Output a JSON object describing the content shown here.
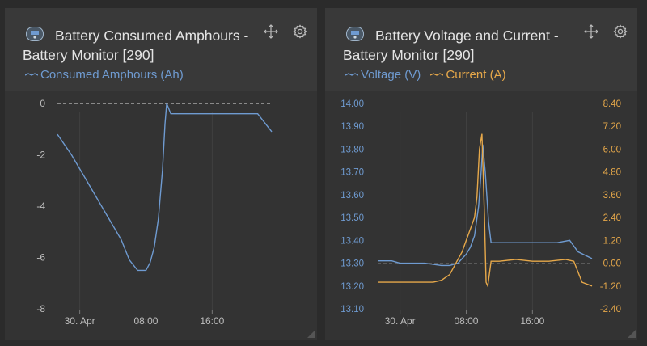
{
  "panels": [
    {
      "title": "Battery Consumed Amphours - Battery Monitor [290]",
      "legend": [
        {
          "label": "Consumed Amphours (Ah)",
          "color": "#6f9bd1"
        }
      ],
      "icons": {
        "device": "battery-monitor-icon",
        "move": "move-arrows-icon",
        "settings": "gear-icon"
      }
    },
    {
      "title": "Battery Voltage and Current - Battery Monitor [290]",
      "legend": [
        {
          "label": "Voltage (V)",
          "color": "#6f9bd1"
        },
        {
          "label": "Current (A)",
          "color": "#e6a84a"
        }
      ],
      "icons": {
        "device": "battery-monitor-icon",
        "move": "move-arrows-icon",
        "settings": "gear-icon"
      }
    }
  ],
  "chart_data": [
    {
      "type": "line",
      "title": "Battery Consumed Amphours - Battery Monitor [290]",
      "x_unit": "hours since 30 Apr 00:00",
      "x_ticks": [
        {
          "v": 0,
          "label": "30. Apr"
        },
        {
          "v": 8,
          "label": "08:00"
        },
        {
          "v": 16,
          "label": "16:00"
        }
      ],
      "xlim": [
        -2.7,
        23.2
      ],
      "ylim": [
        -8,
        0
      ],
      "y_ticks": [
        "0",
        "-2",
        "-4",
        "-6",
        "-8"
      ],
      "y_tick_values": [
        0,
        -2,
        -4,
        -6,
        -8
      ],
      "reference_line": 0,
      "series": [
        {
          "name": "Consumed Amphours (Ah)",
          "color": "#6f9bd1",
          "x": [
            -2.7,
            -1,
            1,
            3,
            5,
            6,
            7,
            7.5,
            8,
            8.5,
            9,
            9.5,
            10,
            10.3,
            10.5,
            11,
            12,
            16,
            20,
            21.5,
            23.2
          ],
          "y": [
            -1.2,
            -2.0,
            -3.1,
            -4.2,
            -5.3,
            -6.1,
            -6.5,
            -6.5,
            -6.5,
            -6.2,
            -5.6,
            -4.5,
            -2.6,
            -0.8,
            0,
            -0.4,
            -0.4,
            -0.4,
            -0.4,
            -0.4,
            -1.1
          ]
        }
      ]
    },
    {
      "type": "line",
      "title": "Battery Voltage and Current - Battery Monitor [290]",
      "x_unit": "hours since 30 Apr 00:00",
      "x_ticks": [
        {
          "v": 0,
          "label": "30. Apr"
        },
        {
          "v": 8,
          "label": "08:00"
        },
        {
          "v": 16,
          "label": "16:00"
        }
      ],
      "xlim": [
        -2.7,
        23.2
      ],
      "y_left": {
        "ylim": [
          13.1,
          14.0
        ],
        "ticks": [
          "14.00",
          "13.90",
          "13.80",
          "13.70",
          "13.60",
          "13.50",
          "13.40",
          "13.30",
          "13.20",
          "13.10"
        ],
        "tick_values": [
          14.0,
          13.9,
          13.8,
          13.7,
          13.6,
          13.5,
          13.4,
          13.3,
          13.2,
          13.1
        ]
      },
      "y_right": {
        "ylim": [
          -2.4,
          8.4
        ],
        "ticks": [
          "8.40",
          "7.20",
          "6.00",
          "4.80",
          "3.60",
          "2.40",
          "1.20",
          "0.00",
          "-1.20",
          "-2.40"
        ],
        "tick_values": [
          8.4,
          7.2,
          6.0,
          4.8,
          3.6,
          2.4,
          1.2,
          0,
          -1.2,
          -2.4
        ]
      },
      "reference_line_right": 0,
      "series": [
        {
          "name": "Voltage (V)",
          "axis": "left",
          "color": "#6f9bd1",
          "x": [
            -2.7,
            -1,
            0,
            3,
            5,
            6,
            7,
            7.5,
            8,
            8.5,
            9,
            9.5,
            9.8,
            10,
            10.3,
            10.7,
            11,
            12,
            16,
            19,
            20.5,
            21.5,
            23.2
          ],
          "y": [
            13.31,
            13.31,
            13.3,
            13.3,
            13.29,
            13.29,
            13.3,
            13.32,
            13.34,
            13.37,
            13.42,
            13.55,
            13.7,
            13.82,
            13.7,
            13.48,
            13.39,
            13.39,
            13.39,
            13.39,
            13.4,
            13.35,
            13.32
          ]
        },
        {
          "name": "Current (A)",
          "axis": "right",
          "color": "#e6a84a",
          "x": [
            -2.7,
            0,
            3,
            4,
            5,
            6,
            6.5,
            7,
            7.5,
            8,
            8.5,
            9,
            9.3,
            9.6,
            9.9,
            10.2,
            10.4,
            10.6,
            11,
            12,
            14,
            16,
            18,
            20,
            21,
            22,
            23.2
          ],
          "y": [
            -1.0,
            -1.0,
            -1.0,
            -1.0,
            -0.9,
            -0.6,
            -0.2,
            0.2,
            0.6,
            1.2,
            1.8,
            2.4,
            3.5,
            6.0,
            6.8,
            2.5,
            -1.0,
            -1.2,
            0.1,
            0.1,
            0.2,
            0.1,
            0.1,
            0.2,
            0.1,
            -1.0,
            -1.2
          ]
        }
      ]
    }
  ]
}
